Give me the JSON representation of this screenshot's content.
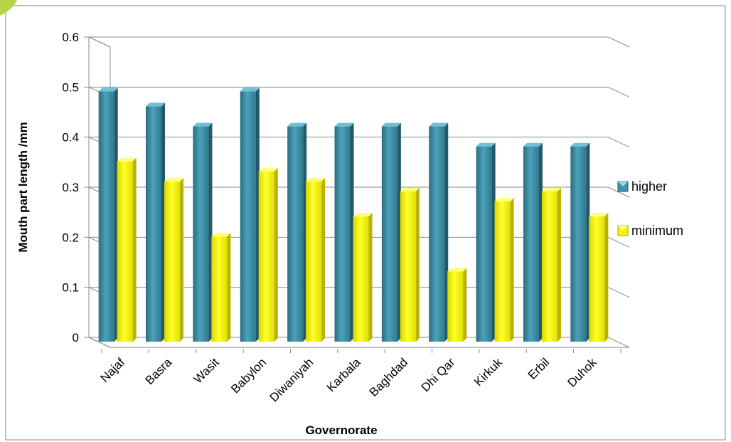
{
  "chart_data": {
    "type": "bar",
    "title": "",
    "xlabel": "Governorate",
    "ylabel": "Mouth part length /mm",
    "categories": [
      "Najaf",
      "Basra",
      "Wasit",
      "Babylon",
      "Diwaniyah",
      "Karbala",
      "Baghdad",
      "Dhi Qar",
      "Kirkuk",
      "Erbil",
      "Duhok"
    ],
    "series": [
      {
        "name": "higher",
        "values": [
          0.5,
          0.47,
          0.43,
          0.5,
          0.43,
          0.43,
          0.43,
          0.43,
          0.39,
          0.39,
          0.39
        ]
      },
      {
        "name": "minimum",
        "values": [
          0.36,
          0.32,
          0.21,
          0.34,
          0.32,
          0.25,
          0.3,
          0.14,
          0.28,
          0.3,
          0.25
        ]
      }
    ],
    "yticks": [
      "0",
      "0.1",
      "0.2",
      "0.3",
      "0.4",
      "0.5",
      "0.6"
    ],
    "ylim": [
      0,
      0.6
    ],
    "grid": true,
    "legend_position": "right",
    "style": "3d-clustered-column",
    "colors": {
      "higher": "#3e94ac",
      "minimum": "#f6f500",
      "corner_accent": "#b9d44a"
    }
  }
}
